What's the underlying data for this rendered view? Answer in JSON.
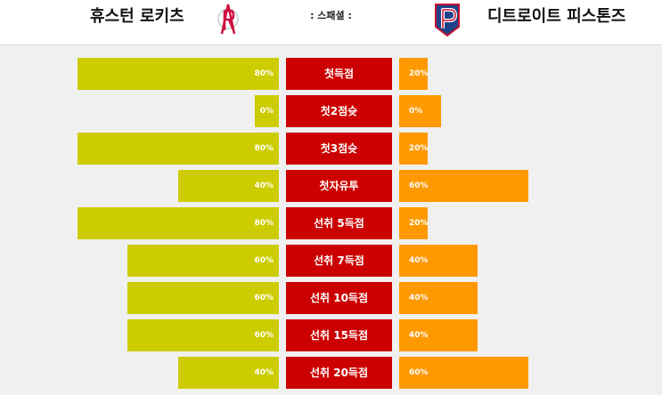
{
  "header": {
    "team_home": "휴스턴 로키츠",
    "team_away": "디트로이트 피스톤즈",
    "title": ": 스패셜 :"
  },
  "colors": {
    "home_bar": "#cccc00",
    "away_bar": "#ff9900",
    "label_bg": "#cc0000"
  },
  "icons": {
    "home_logo": "rockets-logo-icon",
    "away_logo": "pistons-logo-icon"
  },
  "rows": [
    {
      "label": "첫득점",
      "home_pct": "80%",
      "away_pct": "20%",
      "home_value": 80,
      "away_value": 20
    },
    {
      "label": "첫2점슛",
      "home_pct": "0%",
      "away_pct": "0%",
      "home_value": 0,
      "away_value": 0
    },
    {
      "label": "첫3점슛",
      "home_pct": "80%",
      "away_pct": "20%",
      "home_value": 80,
      "away_value": 20
    },
    {
      "label": "첫자유투",
      "home_pct": "40%",
      "away_pct": "60%",
      "home_value": 40,
      "away_value": 60
    },
    {
      "label": "선취 5득점",
      "home_pct": "80%",
      "away_pct": "20%",
      "home_value": 80,
      "away_value": 20
    },
    {
      "label": "선취 7득점",
      "home_pct": "60%",
      "away_pct": "40%",
      "home_value": 60,
      "away_value": 40
    },
    {
      "label": "선취 10득점",
      "home_pct": "60%",
      "away_pct": "40%",
      "home_value": 60,
      "away_value": 40
    },
    {
      "label": "선취 15득점",
      "home_pct": "60%",
      "away_pct": "40%",
      "home_value": 60,
      "away_value": 40
    },
    {
      "label": "선취 20득점",
      "home_pct": "40%",
      "away_pct": "60%",
      "home_value": 40,
      "away_value": 60
    }
  ]
}
